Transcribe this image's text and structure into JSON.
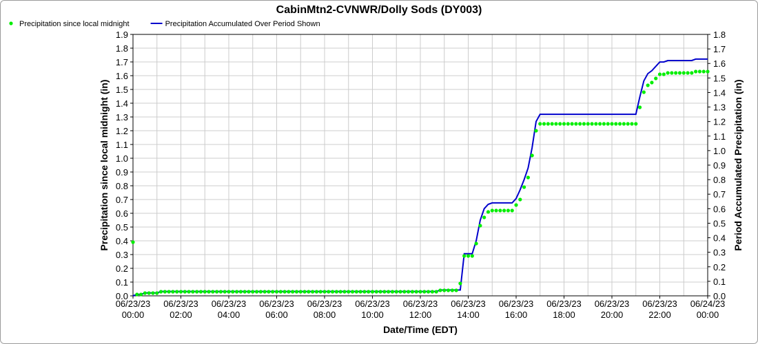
{
  "chart_data": {
    "type": "line",
    "title": "CabinMtn2-CVNWR/Dolly Sods (DY003)",
    "xlabel": "Date/Time (EDT)",
    "ylabel": "Precipitation since local midnight (in)",
    "y2label": "Period Accumulated Precipitation (in)",
    "x": [
      0,
      10,
      20,
      30,
      40,
      50,
      60,
      70,
      80,
      90,
      100,
      110,
      120,
      130,
      140,
      150,
      160,
      170,
      180,
      190,
      200,
      210,
      220,
      230,
      240,
      250,
      260,
      270,
      280,
      290,
      300,
      310,
      320,
      330,
      340,
      350,
      360,
      370,
      380,
      390,
      400,
      410,
      420,
      430,
      440,
      450,
      460,
      470,
      480,
      490,
      500,
      510,
      520,
      530,
      540,
      550,
      560,
      570,
      580,
      590,
      600,
      610,
      620,
      630,
      640,
      650,
      660,
      670,
      680,
      690,
      700,
      710,
      720,
      730,
      740,
      750,
      760,
      770,
      780,
      790,
      800,
      810,
      820,
      830,
      840,
      850,
      860,
      870,
      880,
      890,
      900,
      910,
      920,
      930,
      940,
      950,
      960,
      970,
      980,
      990,
      1000,
      1010,
      1020,
      1030,
      1040,
      1050,
      1060,
      1070,
      1080,
      1090,
      1100,
      1110,
      1120,
      1130,
      1140,
      1150,
      1160,
      1170,
      1180,
      1190,
      1200,
      1210,
      1220,
      1230,
      1240,
      1250,
      1260,
      1270,
      1280,
      1290,
      1300,
      1310,
      1320,
      1330,
      1340,
      1350,
      1360,
      1370,
      1380,
      1390,
      1400,
      1410,
      1420,
      1430,
      1440
    ],
    "series": [
      {
        "name": "Precipitation since local midnight",
        "color": "#00ee00",
        "style": "dots",
        "axis": "y",
        "values": [
          0.39,
          0.01,
          0.01,
          0.02,
          0.02,
          0.02,
          0.02,
          0.03,
          0.03,
          0.03,
          0.03,
          0.03,
          0.03,
          0.03,
          0.03,
          0.03,
          0.03,
          0.03,
          0.03,
          0.03,
          0.03,
          0.03,
          0.03,
          0.03,
          0.03,
          0.03,
          0.03,
          0.03,
          0.03,
          0.03,
          0.03,
          0.03,
          0.03,
          0.03,
          0.03,
          0.03,
          0.03,
          0.03,
          0.03,
          0.03,
          0.03,
          0.03,
          0.03,
          0.03,
          0.03,
          0.03,
          0.03,
          0.03,
          0.03,
          0.03,
          0.03,
          0.03,
          0.03,
          0.03,
          0.03,
          0.03,
          0.03,
          0.03,
          0.03,
          0.03,
          0.03,
          0.03,
          0.03,
          0.03,
          0.03,
          0.03,
          0.03,
          0.03,
          0.03,
          0.03,
          0.03,
          0.03,
          0.03,
          0.03,
          0.03,
          0.03,
          0.03,
          0.04,
          0.04,
          0.04,
          0.04,
          0.04,
          0.09,
          0.29,
          0.29,
          0.29,
          0.38,
          0.51,
          0.57,
          0.61,
          0.62,
          0.62,
          0.62,
          0.62,
          0.62,
          0.62,
          0.66,
          0.7,
          0.79,
          0.86,
          1.02,
          1.2,
          1.25,
          1.25,
          1.25,
          1.25,
          1.25,
          1.25,
          1.25,
          1.25,
          1.25,
          1.25,
          1.25,
          1.25,
          1.25,
          1.25,
          1.25,
          1.25,
          1.25,
          1.25,
          1.25,
          1.25,
          1.25,
          1.25,
          1.25,
          1.25,
          1.25,
          1.37,
          1.48,
          1.53,
          1.55,
          1.58,
          1.61,
          1.61,
          1.62,
          1.62,
          1.62,
          1.62,
          1.62,
          1.62,
          1.62,
          1.63,
          1.63,
          1.63,
          1.63
        ]
      },
      {
        "name": "Precipitation Accumulated Over Period Shown",
        "color": "#0000cc",
        "style": "line",
        "axis": "y2",
        "values": [
          0,
          0.01,
          0.01,
          0.02,
          0.02,
          0.02,
          0.02,
          0.03,
          0.03,
          0.03,
          0.03,
          0.03,
          0.03,
          0.03,
          0.03,
          0.03,
          0.03,
          0.03,
          0.03,
          0.03,
          0.03,
          0.03,
          0.03,
          0.03,
          0.03,
          0.03,
          0.03,
          0.03,
          0.03,
          0.03,
          0.03,
          0.03,
          0.03,
          0.03,
          0.03,
          0.03,
          0.03,
          0.03,
          0.03,
          0.03,
          0.03,
          0.03,
          0.03,
          0.03,
          0.03,
          0.03,
          0.03,
          0.03,
          0.03,
          0.03,
          0.03,
          0.03,
          0.03,
          0.03,
          0.03,
          0.03,
          0.03,
          0.03,
          0.03,
          0.03,
          0.03,
          0.03,
          0.03,
          0.03,
          0.03,
          0.03,
          0.03,
          0.03,
          0.03,
          0.03,
          0.03,
          0.03,
          0.03,
          0.03,
          0.03,
          0.03,
          0.03,
          0.04,
          0.04,
          0.04,
          0.04,
          0.04,
          0.04,
          0.29,
          0.29,
          0.29,
          0.38,
          0.52,
          0.6,
          0.63,
          0.64,
          0.64,
          0.64,
          0.64,
          0.64,
          0.64,
          0.67,
          0.73,
          0.8,
          0.88,
          1.02,
          1.2,
          1.25,
          1.25,
          1.25,
          1.25,
          1.25,
          1.25,
          1.25,
          1.25,
          1.25,
          1.25,
          1.25,
          1.25,
          1.25,
          1.25,
          1.25,
          1.25,
          1.25,
          1.25,
          1.25,
          1.25,
          1.25,
          1.25,
          1.25,
          1.25,
          1.25,
          1.37,
          1.48,
          1.53,
          1.55,
          1.58,
          1.61,
          1.61,
          1.62,
          1.62,
          1.62,
          1.62,
          1.62,
          1.62,
          1.62,
          1.63,
          1.63,
          1.63,
          1.63
        ]
      }
    ],
    "xlim": [
      0,
      1440
    ],
    "xticks": [
      {
        "value": 0,
        "label": "06/23/23 00:00"
      },
      {
        "value": 120,
        "label": "06/23/23 02:00"
      },
      {
        "value": 240,
        "label": "06/23/23 04:00"
      },
      {
        "value": 360,
        "label": "06/23/23 06:00"
      },
      {
        "value": 480,
        "label": "06/23/23 08:00"
      },
      {
        "value": 600,
        "label": "06/23/23 10:00"
      },
      {
        "value": 720,
        "label": "06/23/23 12:00"
      },
      {
        "value": 840,
        "label": "06/23/23 14:00"
      },
      {
        "value": 960,
        "label": "06/23/23 16:00"
      },
      {
        "value": 1080,
        "label": "06/23/23 18:00"
      },
      {
        "value": 1200,
        "label": "06/23/23 20:00"
      },
      {
        "value": 1320,
        "label": "06/23/23 22:00"
      },
      {
        "value": 1440,
        "label": "06/24/23 00:00"
      }
    ],
    "x_minor_ticks": [
      60,
      180,
      300,
      420,
      540,
      660,
      780,
      900,
      1020,
      1140,
      1260,
      1380
    ],
    "ylim": [
      0,
      1.9
    ],
    "yticks": [
      {
        "value": 0,
        "label": "0.0"
      },
      0.1,
      0.2,
      0.3,
      0.4,
      0.5,
      0.6,
      0.7,
      0.8,
      0.9,
      {
        "value": 1,
        "label": "1.0"
      },
      1.1,
      1.2,
      1.3,
      1.4,
      1.5,
      1.6,
      1.7,
      1.8,
      1.9
    ],
    "y2lim": [
      0,
      1.8
    ],
    "y2ticks": [
      {
        "value": 0,
        "label": "0.0"
      },
      0.1,
      0.2,
      0.3,
      0.4,
      0.5,
      0.6,
      0.7,
      0.8,
      0.9,
      {
        "value": 1,
        "label": "1.0"
      },
      1.1,
      1.2,
      1.3,
      1.4,
      1.5,
      1.6,
      1.7,
      1.8
    ],
    "grid": true,
    "legend": "top-left"
  }
}
